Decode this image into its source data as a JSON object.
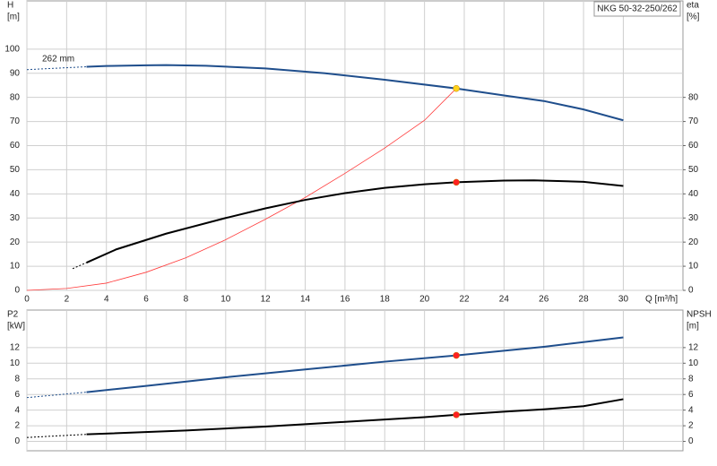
{
  "chart_data": [
    {
      "type": "line",
      "title": "NKG 50-32-250/262",
      "annotation": "262 mm",
      "ylabel": [
        "H",
        "[m]"
      ],
      "y2label": [
        "eta",
        "[%]"
      ],
      "xlabel": "Q [m³/h]",
      "xlim": [
        0,
        33
      ],
      "xticks": [
        0,
        2,
        4,
        6,
        8,
        10,
        12,
        14,
        16,
        18,
        20,
        22,
        24,
        26,
        28,
        30
      ],
      "ylim": [
        0,
        120
      ],
      "yticks": [
        0,
        10,
        20,
        30,
        40,
        50,
        60,
        70,
        80,
        90,
        100
      ],
      "y2lim": [
        0,
        120
      ],
      "y2ticks": [
        0,
        10,
        20,
        30,
        40,
        50,
        60,
        70,
        80
      ],
      "grid": true,
      "series": [
        {
          "color": "#1f4e8c",
          "dashed": true,
          "x": [
            0,
            3
          ],
          "values": [
            91.5,
            92.7
          ]
        },
        {
          "color": "#1f4e8c",
          "x": [
            3,
            4,
            6,
            7,
            9,
            12,
            15,
            18,
            21.6,
            24,
            26,
            28,
            30
          ],
          "values": [
            92.7,
            93,
            93.3,
            93.4,
            93.1,
            92,
            90,
            87.3,
            83.7,
            80.8,
            78.5,
            75,
            70.5
          ]
        },
        {
          "color": "#ff3b3b",
          "thin": true,
          "axis": "y2",
          "x": [
            0,
            2,
            4,
            6,
            8,
            10,
            12,
            14,
            16,
            18,
            20,
            21.6
          ],
          "values": [
            0,
            0.8,
            3,
            7.5,
            13.5,
            21,
            29.5,
            38.5,
            48.5,
            59,
            70.5,
            83.7
          ]
        },
        {
          "color": "#000000",
          "dashed": true,
          "axis": "y2",
          "x": [
            2.3,
            3
          ],
          "values": [
            9,
            11.5
          ]
        },
        {
          "color": "#000000",
          "axis": "y2",
          "x": [
            3,
            4.5,
            7,
            10,
            12,
            14,
            16,
            18,
            20,
            21.6,
            24,
            25.5,
            28,
            30
          ],
          "values": [
            11.5,
            17,
            23.5,
            30,
            34,
            37.5,
            40.3,
            42.5,
            44,
            44.8,
            45.5,
            45.6,
            45,
            43.3
          ]
        }
      ],
      "points": [
        {
          "x": 21.6,
          "y": 83.7,
          "color": "#ffd21a"
        },
        {
          "x": 21.6,
          "y": 44.8,
          "color": "#ff2020"
        }
      ]
    },
    {
      "type": "line",
      "ylabel": [
        "P2",
        "[kW]"
      ],
      "y2label": [
        "NPSH",
        "[m]"
      ],
      "xlim": [
        0,
        33
      ],
      "xticks": [
        0,
        2,
        4,
        6,
        8,
        10,
        12,
        14,
        16,
        18,
        20,
        22,
        24,
        26,
        28,
        30
      ],
      "ylim": [
        -1.2,
        16.8
      ],
      "yticks": [
        0,
        2,
        4,
        6,
        8,
        10,
        12
      ],
      "y2lim": [
        -1.2,
        16.8
      ],
      "y2ticks": [
        0,
        2,
        4,
        6,
        8,
        10,
        12
      ],
      "grid": true,
      "series": [
        {
          "color": "#1f4e8c",
          "dashed": true,
          "x": [
            0,
            3
          ],
          "values": [
            5.6,
            6.3
          ]
        },
        {
          "color": "#1f4e8c",
          "x": [
            3,
            6,
            10,
            14,
            18,
            21.6,
            26,
            30
          ],
          "values": [
            6.3,
            7.1,
            8.2,
            9.2,
            10.2,
            11,
            12.1,
            13.3
          ]
        },
        {
          "color": "#000000",
          "dashed": true,
          "axis": "y2",
          "x": [
            0,
            3
          ],
          "values": [
            0.5,
            0.9
          ]
        },
        {
          "color": "#000000",
          "axis": "y2",
          "x": [
            3,
            8,
            12,
            16,
            20,
            21.6,
            24,
            26,
            28,
            30
          ],
          "values": [
            0.9,
            1.4,
            1.9,
            2.5,
            3.1,
            3.4,
            3.8,
            4.1,
            4.5,
            5.4
          ]
        }
      ],
      "points": [
        {
          "x": 21.6,
          "y": 11,
          "color": "#ff2020"
        },
        {
          "x": 21.6,
          "y": 3.4,
          "color": "#ff2020",
          "axis": "y2"
        }
      ]
    }
  ]
}
